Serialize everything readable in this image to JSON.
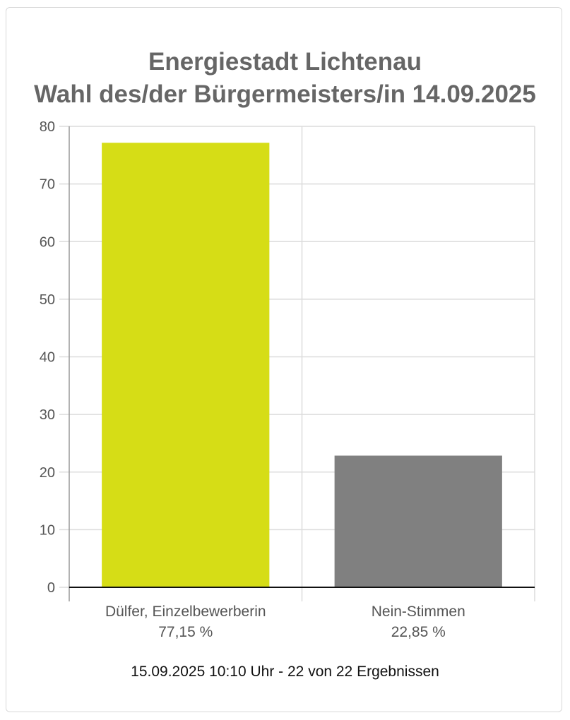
{
  "chart_data": {
    "type": "bar",
    "title": "Energiestadt Lichtenau",
    "subtitle": "Wahl des/der Bürgermeisters/in 14.09.2025",
    "categories": [
      "Dülfer, Einzelbewerberin",
      "Nein-Stimmen"
    ],
    "category_values_labels": [
      "77,15 %",
      "22,85 %"
    ],
    "values": [
      77.15,
      22.85
    ],
    "colors": [
      "#d6dd16",
      "#808080"
    ],
    "ylim": [
      0,
      80
    ],
    "yticks": [
      0,
      10,
      20,
      30,
      40,
      50,
      60,
      70,
      80
    ],
    "grid": true,
    "xlabel": "",
    "ylabel": ""
  },
  "footer": "15.09.2025 10:10 Uhr - 22 von 22 Ergebnissen"
}
